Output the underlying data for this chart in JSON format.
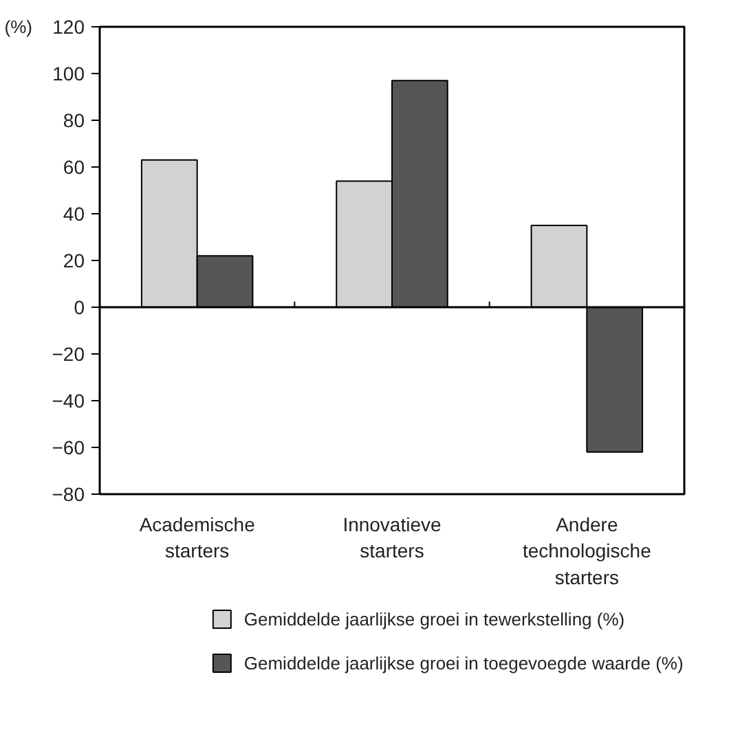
{
  "chart_data": {
    "type": "bar",
    "ylabel": "(%)",
    "categories": [
      "Academische starters",
      "Innovatieve starters",
      "Andere technologische starters"
    ],
    "series": [
      {
        "name": "Gemiddelde jaarlijkse groei in tewerkstelling (%)",
        "color": "#d1d2d4",
        "values": [
          63,
          54,
          35
        ]
      },
      {
        "name": "Gemiddelde jaarlijkse groei in toegevoegde waarde (%)",
        "color": "#555658",
        "values": [
          22,
          97,
          -62
        ]
      }
    ],
    "ylim": [
      -80,
      120
    ],
    "yticks": [
      -80,
      -60,
      -40,
      -20,
      0,
      20,
      40,
      60,
      80,
      100,
      120
    ],
    "legend": "bottom"
  }
}
